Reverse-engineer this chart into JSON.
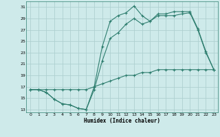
{
  "xlabel": "Humidex (Indice chaleur)",
  "bg_color": "#ceeaea",
  "grid_color": "#aed0d0",
  "line_color": "#2d7d6e",
  "xlim": [
    -0.5,
    23.5
  ],
  "ylim": [
    12.5,
    32
  ],
  "xticks": [
    0,
    1,
    2,
    3,
    4,
    5,
    6,
    7,
    8,
    9,
    10,
    11,
    12,
    13,
    14,
    15,
    16,
    17,
    18,
    19,
    20,
    21,
    22,
    23
  ],
  "yticks": [
    13,
    15,
    17,
    19,
    21,
    23,
    25,
    27,
    29,
    31
  ],
  "line1_x": [
    0,
    1,
    2,
    3,
    4,
    5,
    6,
    7,
    8,
    9,
    10,
    11,
    12,
    13,
    14,
    15,
    16,
    17,
    18,
    19,
    20,
    21,
    22,
    23
  ],
  "line1_y": [
    16.5,
    16.5,
    16.0,
    14.8,
    14.0,
    13.8,
    13.2,
    13.0,
    17.0,
    24.0,
    28.5,
    29.5,
    30.0,
    31.2,
    29.5,
    28.5,
    29.5,
    29.5,
    29.5,
    29.8,
    30.0,
    27.0,
    23.0,
    20.0
  ],
  "line2_x": [
    0,
    1,
    2,
    3,
    4,
    5,
    6,
    7,
    8,
    9,
    10,
    11,
    12,
    13,
    14,
    15,
    16,
    17,
    18,
    19,
    20,
    21,
    22,
    23
  ],
  "line2_y": [
    16.5,
    16.5,
    16.0,
    14.8,
    14.0,
    13.8,
    13.2,
    13.0,
    16.5,
    21.5,
    25.5,
    26.5,
    28.0,
    29.0,
    28.0,
    28.5,
    29.8,
    29.8,
    30.2,
    30.2,
    30.2,
    27.2,
    23.2,
    20.0
  ],
  "line3_x": [
    0,
    1,
    2,
    3,
    4,
    5,
    6,
    7,
    8,
    9,
    10,
    11,
    12,
    13,
    14,
    15,
    16,
    17,
    18,
    19,
    20,
    21,
    22,
    23
  ],
  "line3_y": [
    16.5,
    16.5,
    16.5,
    16.5,
    16.5,
    16.5,
    16.5,
    16.5,
    17.0,
    17.5,
    18.0,
    18.5,
    19.0,
    19.0,
    19.5,
    19.5,
    20.0,
    20.0,
    20.0,
    20.0,
    20.0,
    20.0,
    20.0,
    20.0
  ]
}
